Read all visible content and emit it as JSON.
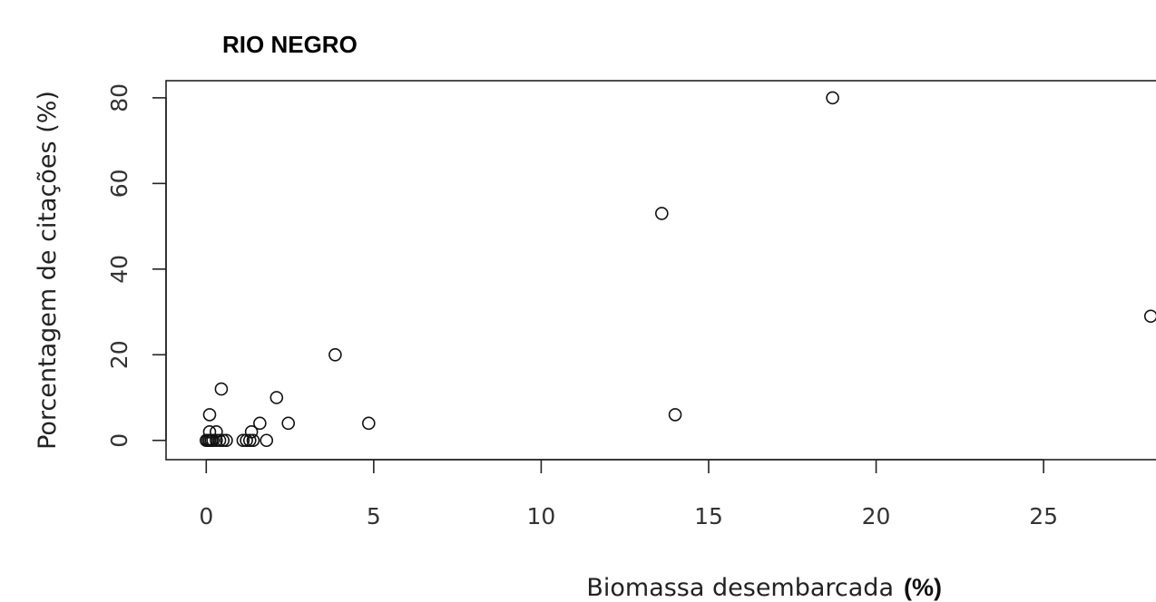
{
  "chart_data": {
    "type": "scatter",
    "title": "RIO NEGRO",
    "xlabel": "Biomassa desembarcada",
    "xlabel_unit": "(%)",
    "ylabel": "Porcentagem de citações (%)",
    "xlim": [
      -1.2,
      28.6
    ],
    "ylim": [
      -4.5,
      84
    ],
    "x_ticks": [
      0,
      5,
      10,
      15,
      20,
      25
    ],
    "y_ticks": [
      0,
      20,
      40,
      60,
      80
    ],
    "grid": false,
    "legend": "none",
    "points": [
      {
        "x": 0.0,
        "y": 0
      },
      {
        "x": 0.05,
        "y": 0
      },
      {
        "x": 0.1,
        "y": 0
      },
      {
        "x": 0.15,
        "y": 0
      },
      {
        "x": 0.2,
        "y": 0
      },
      {
        "x": 0.3,
        "y": 0
      },
      {
        "x": 0.4,
        "y": 0
      },
      {
        "x": 0.5,
        "y": 0
      },
      {
        "x": 0.6,
        "y": 0
      },
      {
        "x": 0.1,
        "y": 2
      },
      {
        "x": 0.3,
        "y": 2
      },
      {
        "x": 0.1,
        "y": 6
      },
      {
        "x": 0.45,
        "y": 12
      },
      {
        "x": 1.1,
        "y": 0
      },
      {
        "x": 1.2,
        "y": 0
      },
      {
        "x": 1.3,
        "y": 0
      },
      {
        "x": 1.4,
        "y": 0
      },
      {
        "x": 1.35,
        "y": 2
      },
      {
        "x": 1.6,
        "y": 4
      },
      {
        "x": 1.8,
        "y": 0
      },
      {
        "x": 2.1,
        "y": 10
      },
      {
        "x": 2.45,
        "y": 4
      },
      {
        "x": 3.85,
        "y": 20
      },
      {
        "x": 4.85,
        "y": 4
      },
      {
        "x": 13.6,
        "y": 53
      },
      {
        "x": 14.0,
        "y": 6
      },
      {
        "x": 18.7,
        "y": 80
      },
      {
        "x": 28.2,
        "y": 29
      }
    ]
  }
}
